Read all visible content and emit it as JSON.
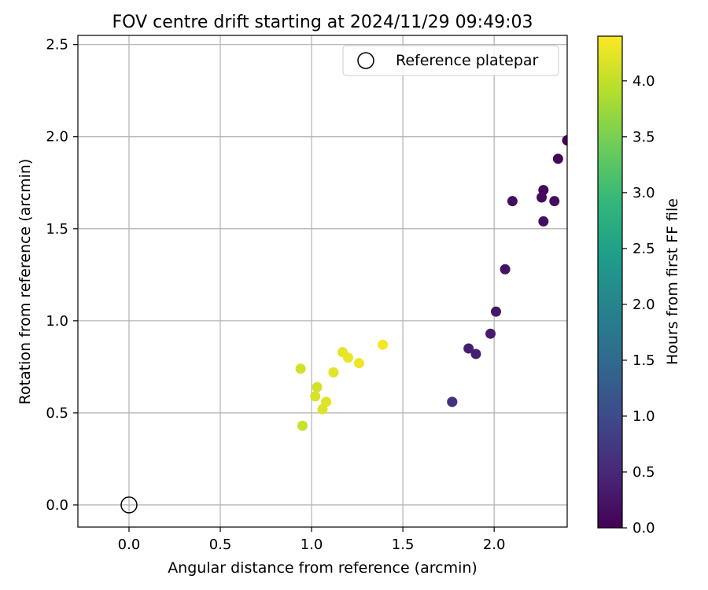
{
  "chart_data": {
    "type": "scatter",
    "title": "FOV centre drift starting at 2024/11/29 09:49:03",
    "xlabel": "Angular distance from reference (arcmin)",
    "ylabel": "Rotation from reference (arcmin)",
    "xlim": [
      -0.28,
      2.4
    ],
    "ylim": [
      -0.12,
      2.55
    ],
    "xticks": [
      0.0,
      0.5,
      1.0,
      1.5,
      2.0
    ],
    "xtick_labels": [
      "0.0",
      "0.5",
      "1.0",
      "1.5",
      "2.0"
    ],
    "yticks": [
      0.0,
      0.5,
      1.0,
      1.5,
      2.0,
      2.5
    ],
    "ytick_labels": [
      "0.0",
      "0.5",
      "1.0",
      "1.5",
      "2.0",
      "2.5"
    ],
    "grid": true,
    "legend": {
      "placement": "top-right",
      "entries": [
        "Reference platepar"
      ]
    },
    "reference_point": {
      "x": 0.0,
      "y": 0.0,
      "name": "Reference platepar"
    },
    "colorbar": {
      "label": "Hours from first FF file",
      "range": [
        0.0,
        4.4
      ],
      "colormap": "viridis",
      "ticks": [
        0.0,
        0.5,
        1.0,
        1.5,
        2.0,
        2.5,
        3.0,
        3.5,
        4.0
      ],
      "tick_labels": [
        "0.0",
        "0.5",
        "1.0",
        "1.5",
        "2.0",
        "2.5",
        "3.0",
        "3.5",
        "4.0"
      ]
    },
    "points": [
      {
        "x": 2.4,
        "y": 1.98,
        "hours": 0.02
      },
      {
        "x": 2.35,
        "y": 1.88,
        "hours": 0.05
      },
      {
        "x": 2.27,
        "y": 1.71,
        "hours": 0.08
      },
      {
        "x": 2.26,
        "y": 1.67,
        "hours": 0.1
      },
      {
        "x": 2.33,
        "y": 1.65,
        "hours": 0.12
      },
      {
        "x": 2.1,
        "y": 1.65,
        "hours": 0.15
      },
      {
        "x": 2.27,
        "y": 1.54,
        "hours": 0.18
      },
      {
        "x": 2.06,
        "y": 1.28,
        "hours": 0.22
      },
      {
        "x": 2.01,
        "y": 1.05,
        "hours": 0.28
      },
      {
        "x": 1.98,
        "y": 0.93,
        "hours": 0.32
      },
      {
        "x": 1.86,
        "y": 0.85,
        "hours": 0.35
      },
      {
        "x": 1.9,
        "y": 0.82,
        "hours": 0.38
      },
      {
        "x": 1.77,
        "y": 0.56,
        "hours": 0.55
      },
      {
        "x": 1.77,
        "y": 0.56,
        "hours": 0.62
      },
      {
        "x": 0.95,
        "y": 0.43,
        "hours": 4.05
      },
      {
        "x": 0.94,
        "y": 0.74,
        "hours": 4.1
      },
      {
        "x": 1.03,
        "y": 0.64,
        "hours": 4.12
      },
      {
        "x": 1.02,
        "y": 0.59,
        "hours": 4.15
      },
      {
        "x": 1.06,
        "y": 0.52,
        "hours": 4.18
      },
      {
        "x": 1.08,
        "y": 0.56,
        "hours": 4.2
      },
      {
        "x": 1.12,
        "y": 0.72,
        "hours": 4.22
      },
      {
        "x": 1.17,
        "y": 0.83,
        "hours": 4.25
      },
      {
        "x": 1.2,
        "y": 0.8,
        "hours": 4.28
      },
      {
        "x": 1.26,
        "y": 0.77,
        "hours": 4.3
      },
      {
        "x": 1.39,
        "y": 0.87,
        "hours": 4.36
      }
    ]
  }
}
